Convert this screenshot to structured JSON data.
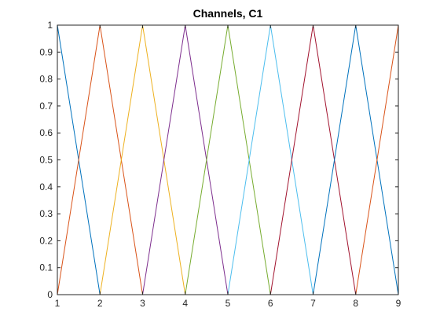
{
  "chart_data": {
    "type": "line",
    "title": "Channels, C1",
    "xlabel": "",
    "ylabel": "",
    "xlim": [
      1,
      9
    ],
    "ylim": [
      0,
      1
    ],
    "xticks": [
      1,
      2,
      3,
      4,
      5,
      6,
      7,
      8,
      9
    ],
    "yticks": [
      0,
      0.1,
      0.2,
      0.3,
      0.4,
      0.5,
      0.6,
      0.7,
      0.8,
      0.9,
      1
    ],
    "grid": false,
    "legend": false,
    "series": [
      {
        "x": [
          1,
          2
        ],
        "y": [
          1,
          0
        ],
        "color": "#0072BD"
      },
      {
        "x": [
          1,
          2,
          3
        ],
        "y": [
          0,
          1,
          0
        ],
        "color": "#D95319"
      },
      {
        "x": [
          2,
          3,
          4
        ],
        "y": [
          0,
          1,
          0
        ],
        "color": "#EDB120"
      },
      {
        "x": [
          3,
          4,
          5
        ],
        "y": [
          0,
          1,
          0
        ],
        "color": "#7E2F8E"
      },
      {
        "x": [
          4,
          5,
          6
        ],
        "y": [
          0,
          1,
          0
        ],
        "color": "#77AC30"
      },
      {
        "x": [
          5,
          6,
          7
        ],
        "y": [
          0,
          1,
          0
        ],
        "color": "#4DBEEE"
      },
      {
        "x": [
          6,
          7,
          8
        ],
        "y": [
          0,
          1,
          0
        ],
        "color": "#A2142F"
      },
      {
        "x": [
          7,
          8,
          9
        ],
        "y": [
          0,
          1,
          0
        ],
        "color": "#0072BD"
      },
      {
        "x": [
          8,
          9
        ],
        "y": [
          0,
          1
        ],
        "color": "#D95319"
      }
    ]
  }
}
